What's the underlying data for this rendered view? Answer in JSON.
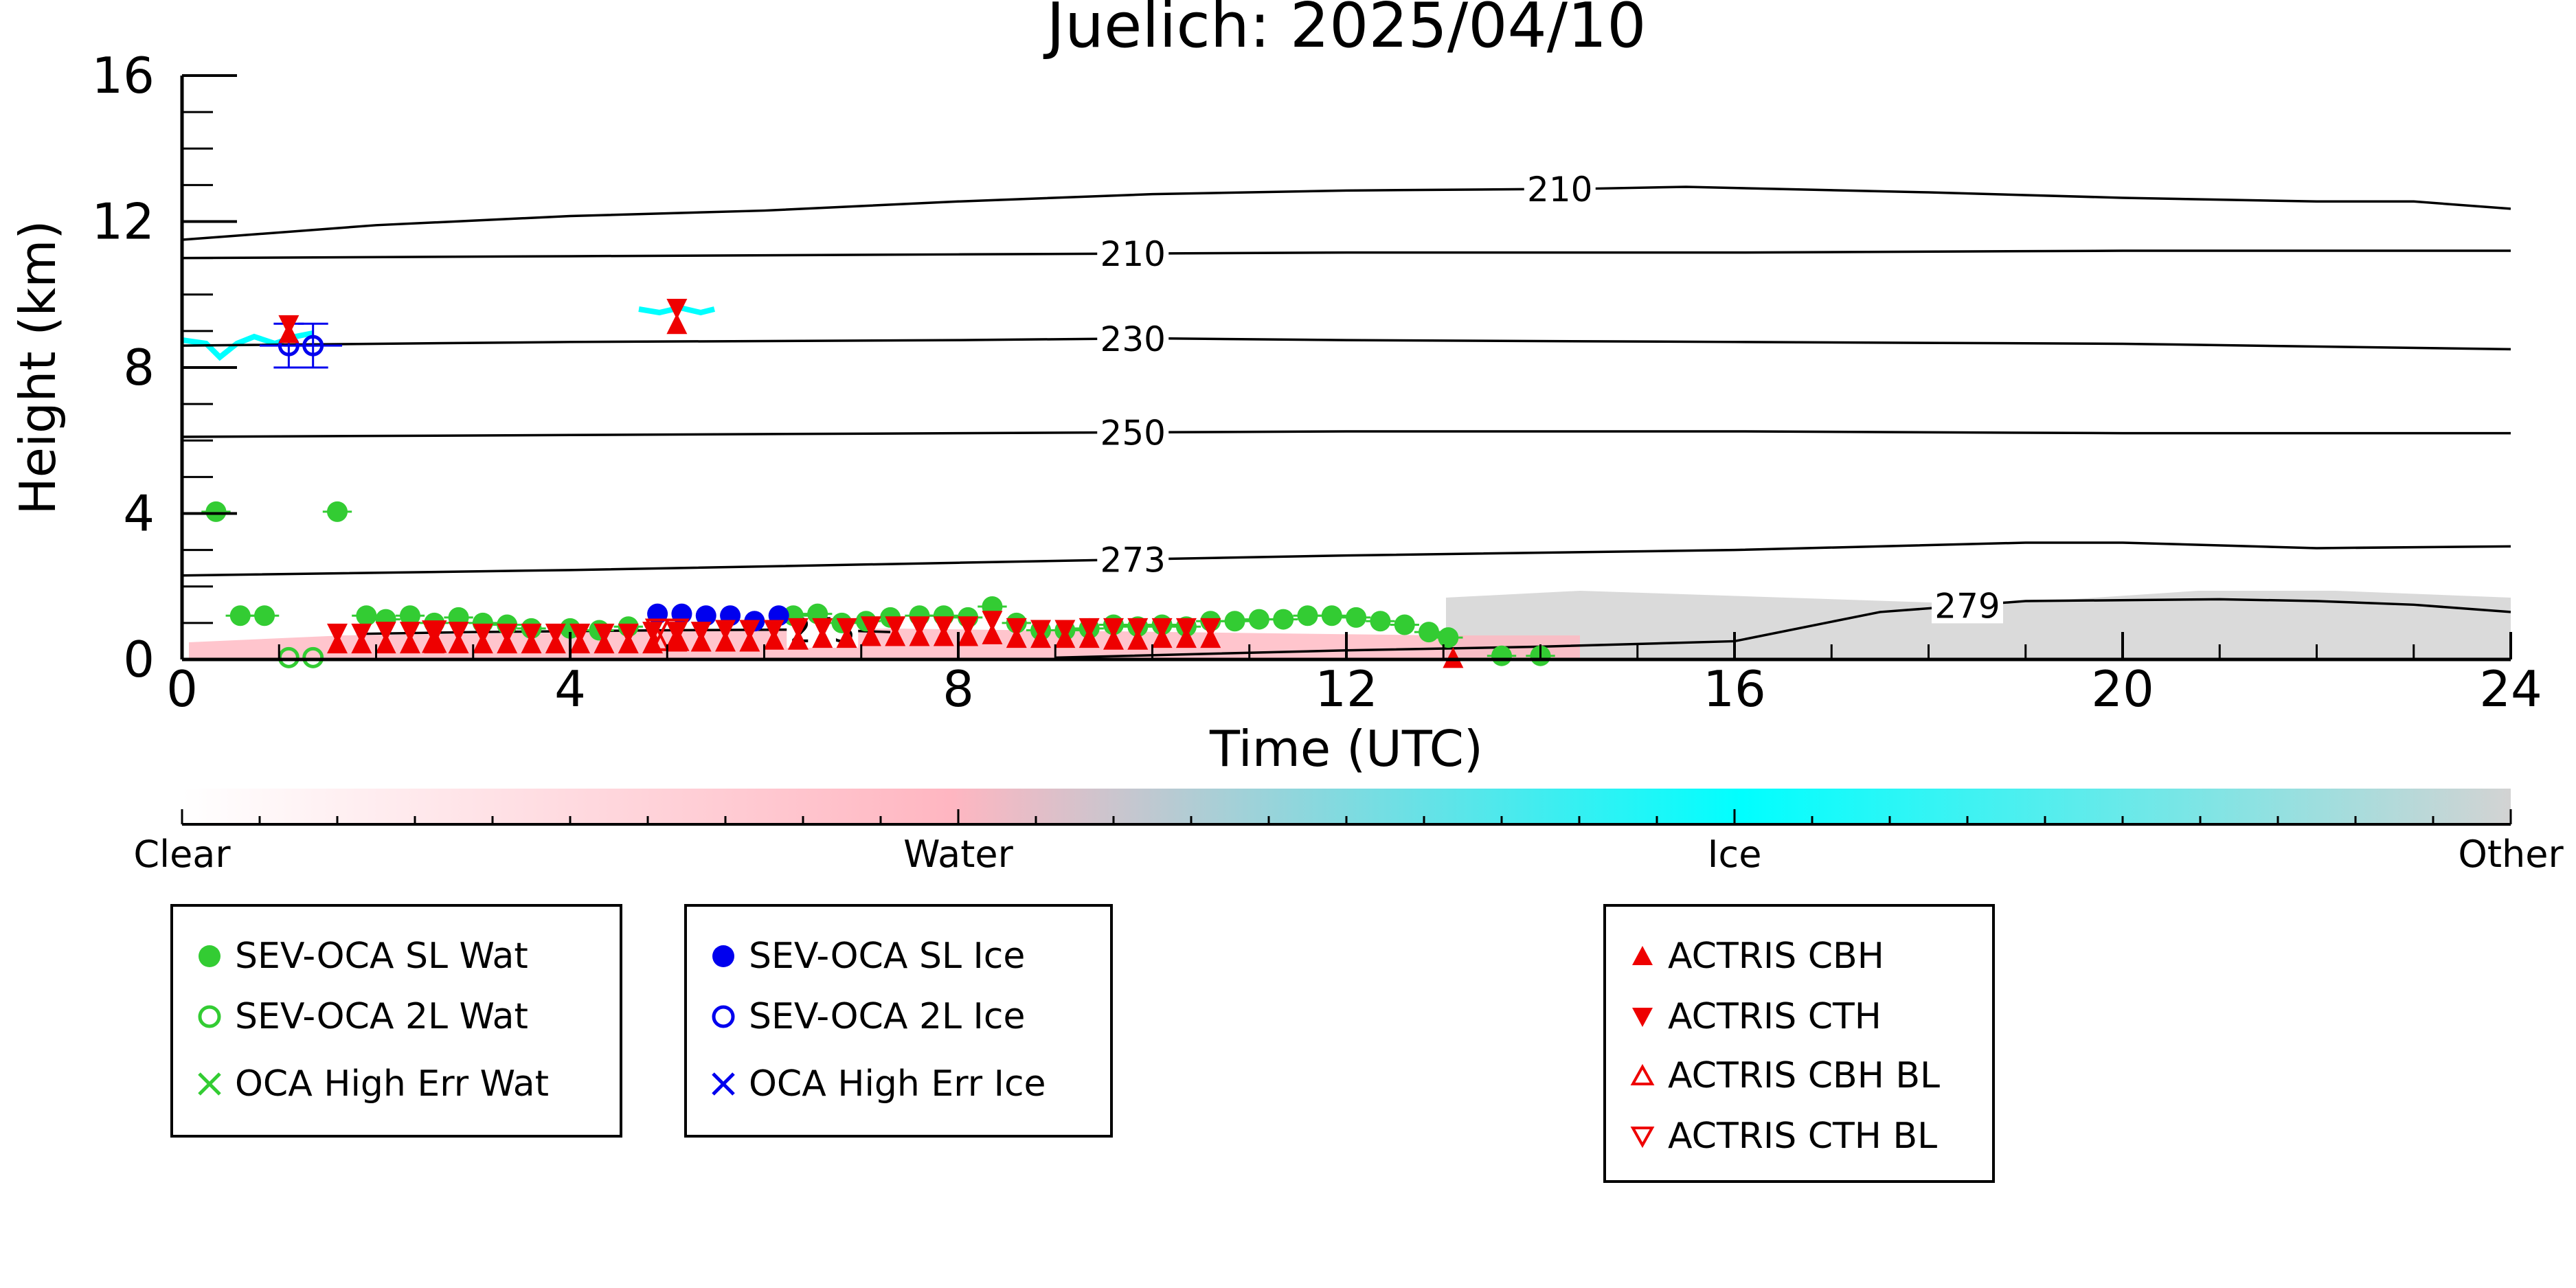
{
  "chart_data": {
    "type": "scatter",
    "title": "Juelich: 2025/04/10",
    "xlabel": "Time (UTC)",
    "ylabel": "Height (km)",
    "xlim": [
      0,
      24
    ],
    "ylim": [
      0,
      16
    ],
    "x_ticks": [
      {
        "value": 0,
        "label": "0"
      },
      {
        "value": 4,
        "label": "4"
      },
      {
        "value": 8,
        "label": "8"
      },
      {
        "value": 12,
        "label": "12"
      },
      {
        "value": 16,
        "label": "16"
      },
      {
        "value": 20,
        "label": "20"
      },
      {
        "value": 24,
        "label": "24"
      }
    ],
    "y_ticks": [
      {
        "value": 0,
        "label": "0"
      },
      {
        "value": 4,
        "label": "4"
      },
      {
        "value": 8,
        "label": "8"
      },
      {
        "value": 12,
        "label": "12"
      },
      {
        "value": 16,
        "label": "16"
      }
    ],
    "grid": false,
    "temperature_contours": [
      {
        "label": "210",
        "label_at": 14.2,
        "points": [
          [
            0,
            11.5
          ],
          [
            0.5,
            11.6
          ],
          [
            2,
            11.9
          ],
          [
            4,
            12.15
          ],
          [
            6,
            12.3
          ],
          [
            8,
            12.55
          ],
          [
            10,
            12.75
          ],
          [
            12,
            12.85
          ],
          [
            14.5,
            12.9
          ],
          [
            15.5,
            12.95
          ],
          [
            18,
            12.8
          ],
          [
            20,
            12.65
          ],
          [
            22,
            12.55
          ],
          [
            23,
            12.55
          ],
          [
            24,
            12.35
          ]
        ]
      },
      {
        "label": "210",
        "label_at": 9.8,
        "points": [
          [
            0,
            11.0
          ],
          [
            4,
            11.05
          ],
          [
            8,
            11.1
          ],
          [
            12,
            11.15
          ],
          [
            16,
            11.15
          ],
          [
            20,
            11.2
          ],
          [
            24,
            11.2
          ]
        ]
      },
      {
        "label": "230",
        "label_at": 9.8,
        "points": [
          [
            0,
            8.6
          ],
          [
            4,
            8.7
          ],
          [
            8,
            8.75
          ],
          [
            10,
            8.8
          ],
          [
            12,
            8.75
          ],
          [
            16,
            8.7
          ],
          [
            20,
            8.65
          ],
          [
            24,
            8.5
          ]
        ]
      },
      {
        "label": "250",
        "label_at": 9.8,
        "points": [
          [
            0,
            6.1
          ],
          [
            4,
            6.15
          ],
          [
            8,
            6.2
          ],
          [
            12,
            6.25
          ],
          [
            16,
            6.25
          ],
          [
            20,
            6.2
          ],
          [
            24,
            6.2
          ]
        ]
      },
      {
        "label": "273",
        "label_at": 9.8,
        "points": [
          [
            0,
            2.3
          ],
          [
            4,
            2.45
          ],
          [
            8,
            2.65
          ],
          [
            10,
            2.75
          ],
          [
            12,
            2.85
          ],
          [
            16,
            3.0
          ],
          [
            19,
            3.2
          ],
          [
            20,
            3.2
          ],
          [
            22,
            3.05
          ],
          [
            24,
            3.1
          ]
        ]
      },
      {
        "label": "273",
        "label_at": 6.6,
        "points": [
          [
            1.8,
            0.7
          ],
          [
            3,
            0.75
          ],
          [
            5,
            0.8
          ],
          [
            6.5,
            0.82
          ],
          [
            7.3,
            0.75
          ]
        ]
      },
      {
        "label": "279",
        "label_at": 18.4,
        "points": [
          [
            9,
            0.05
          ],
          [
            12,
            0.25
          ],
          [
            14,
            0.35
          ],
          [
            16,
            0.5
          ],
          [
            17.5,
            1.3
          ],
          [
            19,
            1.6
          ],
          [
            21,
            1.65
          ],
          [
            22,
            1.6
          ],
          [
            23,
            1.5
          ],
          [
            24,
            1.3
          ]
        ]
      }
    ],
    "classification_colorbar": {
      "labels": [
        "Clear",
        "Water",
        "Ice",
        "Other"
      ],
      "colors": [
        "#ffffff",
        "#ffb6c1",
        "#00ffff",
        "#d3d3d3"
      ]
    },
    "series": [
      {
        "name": "SEV-OCA SL Wat",
        "marker": "filled-circle",
        "color": "#33cc33",
        "points": [
          [
            0.35,
            4.05
          ],
          [
            1.6,
            4.05
          ],
          [
            0.6,
            1.2
          ],
          [
            0.85,
            1.2
          ],
          [
            1.9,
            1.2
          ],
          [
            2.1,
            1.1
          ],
          [
            2.35,
            1.2
          ],
          [
            2.6,
            1.0
          ],
          [
            2.85,
            1.15
          ],
          [
            3.1,
            1.0
          ],
          [
            3.35,
            0.95
          ],
          [
            3.6,
            0.85
          ],
          [
            4.0,
            0.85
          ],
          [
            4.3,
            0.8
          ],
          [
            4.6,
            0.9
          ],
          [
            6.3,
            1.2
          ],
          [
            6.55,
            1.25
          ],
          [
            6.8,
            1.0
          ],
          [
            7.05,
            1.05
          ],
          [
            7.3,
            1.15
          ],
          [
            7.6,
            1.2
          ],
          [
            7.85,
            1.2
          ],
          [
            8.1,
            1.15
          ],
          [
            8.35,
            1.45
          ],
          [
            8.6,
            1.0
          ],
          [
            8.85,
            0.8
          ],
          [
            9.1,
            0.8
          ],
          [
            9.35,
            0.85
          ],
          [
            9.6,
            0.95
          ],
          [
            9.85,
            0.9
          ],
          [
            10.1,
            0.95
          ],
          [
            10.35,
            0.9
          ],
          [
            10.6,
            1.05
          ],
          [
            10.85,
            1.05
          ],
          [
            11.1,
            1.1
          ],
          [
            11.35,
            1.1
          ],
          [
            11.6,
            1.2
          ],
          [
            11.85,
            1.2
          ],
          [
            12.1,
            1.15
          ],
          [
            12.35,
            1.05
          ],
          [
            12.6,
            0.95
          ],
          [
            12.85,
            0.75
          ],
          [
            13.05,
            0.6
          ],
          [
            13.6,
            0.1
          ],
          [
            14.0,
            0.1
          ]
        ],
        "x_err": 0.15
      },
      {
        "name": "SEV-OCA 2L Wat",
        "marker": "open-circle",
        "color": "#33cc33",
        "points": [
          [
            1.1,
            0.05
          ],
          [
            1.35,
            0.05
          ]
        ]
      },
      {
        "name": "OCA High Err Wat",
        "marker": "x",
        "color": "#33cc33",
        "points": []
      },
      {
        "name": "SEV-OCA SL Ice",
        "marker": "filled-circle",
        "color": "#0000ee",
        "points": [
          [
            4.9,
            1.25
          ],
          [
            5.15,
            1.25
          ],
          [
            5.4,
            1.2
          ],
          [
            5.65,
            1.2
          ],
          [
            5.9,
            1.05
          ],
          [
            6.15,
            1.2
          ]
        ]
      },
      {
        "name": "SEV-OCA 2L Ice",
        "marker": "open-circle",
        "color": "#0000ee",
        "points": [
          [
            1.1,
            8.6
          ],
          [
            1.35,
            8.6
          ]
        ],
        "y_err": 0.6,
        "x_err": 0.3
      },
      {
        "name": "OCA High Err Ice",
        "marker": "x",
        "color": "#0000ee",
        "points": []
      },
      {
        "name": "ACTRIS CBH",
        "marker": "filled-triangle-up",
        "color": "#ee0000",
        "points": [
          [
            5.1,
            9.2
          ],
          [
            1.1,
            8.95
          ],
          [
            1.6,
            0.45
          ],
          [
            1.85,
            0.45
          ],
          [
            2.1,
            0.45
          ],
          [
            2.35,
            0.45
          ],
          [
            2.6,
            0.45
          ],
          [
            2.85,
            0.45
          ],
          [
            3.1,
            0.45
          ],
          [
            3.35,
            0.45
          ],
          [
            3.6,
            0.45
          ],
          [
            3.85,
            0.45
          ],
          [
            4.1,
            0.45
          ],
          [
            4.35,
            0.45
          ],
          [
            4.6,
            0.45
          ],
          [
            4.85,
            0.45
          ],
          [
            5.1,
            0.5
          ],
          [
            5.35,
            0.5
          ],
          [
            5.6,
            0.5
          ],
          [
            5.85,
            0.5
          ],
          [
            6.1,
            0.55
          ],
          [
            6.35,
            0.55
          ],
          [
            6.6,
            0.6
          ],
          [
            6.85,
            0.6
          ],
          [
            7.1,
            0.65
          ],
          [
            7.35,
            0.65
          ],
          [
            7.6,
            0.65
          ],
          [
            7.85,
            0.65
          ],
          [
            8.1,
            0.65
          ],
          [
            8.35,
            0.7
          ],
          [
            8.6,
            0.6
          ],
          [
            8.85,
            0.6
          ],
          [
            9.1,
            0.6
          ],
          [
            9.35,
            0.6
          ],
          [
            9.6,
            0.55
          ],
          [
            9.85,
            0.55
          ],
          [
            10.1,
            0.6
          ],
          [
            10.35,
            0.6
          ],
          [
            10.6,
            0.6
          ],
          [
            13.1,
            0.05
          ]
        ]
      },
      {
        "name": "ACTRIS CTH",
        "marker": "filled-triangle-down",
        "color": "#ee0000",
        "points": [
          [
            5.1,
            9.6
          ],
          [
            1.1,
            9.15
          ],
          [
            1.6,
            0.7
          ],
          [
            1.85,
            0.7
          ],
          [
            2.1,
            0.75
          ],
          [
            2.35,
            0.75
          ],
          [
            2.6,
            0.75
          ],
          [
            2.85,
            0.75
          ],
          [
            3.1,
            0.7
          ],
          [
            3.35,
            0.7
          ],
          [
            3.6,
            0.7
          ],
          [
            3.85,
            0.7
          ],
          [
            4.1,
            0.7
          ],
          [
            4.35,
            0.7
          ],
          [
            4.6,
            0.7
          ],
          [
            4.85,
            0.75
          ],
          [
            5.1,
            0.75
          ],
          [
            5.35,
            0.75
          ],
          [
            5.6,
            0.8
          ],
          [
            5.85,
            0.8
          ],
          [
            6.1,
            0.8
          ],
          [
            6.35,
            0.85
          ],
          [
            6.6,
            0.85
          ],
          [
            6.85,
            0.85
          ],
          [
            7.1,
            0.9
          ],
          [
            7.35,
            0.9
          ],
          [
            7.6,
            0.9
          ],
          [
            7.85,
            0.9
          ],
          [
            8.1,
            0.9
          ],
          [
            8.35,
            1.05
          ],
          [
            8.6,
            0.85
          ],
          [
            8.85,
            0.8
          ],
          [
            9.1,
            0.8
          ],
          [
            9.35,
            0.85
          ],
          [
            9.6,
            0.85
          ],
          [
            9.85,
            0.85
          ],
          [
            10.1,
            0.85
          ],
          [
            10.35,
            0.85
          ],
          [
            10.6,
            0.85
          ]
        ]
      },
      {
        "name": "ACTRIS CBH BL",
        "marker": "open-triangle-up",
        "color": "#ee0000",
        "points": [
          [
            2.6,
            0.5
          ],
          [
            4.9,
            0.55
          ],
          [
            5.1,
            0.55
          ]
        ]
      },
      {
        "name": "ACTRIS CTH BL",
        "marker": "open-triangle-down",
        "color": "#ee0000",
        "points": [
          [
            2.6,
            0.75
          ],
          [
            4.9,
            0.8
          ],
          [
            5.1,
            0.8
          ]
        ]
      }
    ],
    "legend_groups": [
      [
        "SEV-OCA SL Wat",
        "SEV-OCA 2L Wat",
        "OCA High Err Wat"
      ],
      [
        "SEV-OCA SL Ice",
        "SEV-OCA 2L Ice",
        "OCA High Err Ice"
      ],
      [
        "ACTRIS CBH",
        "ACTRIS CTH",
        "ACTRIS CBH BL",
        "ACTRIS CTH BL"
      ]
    ]
  }
}
